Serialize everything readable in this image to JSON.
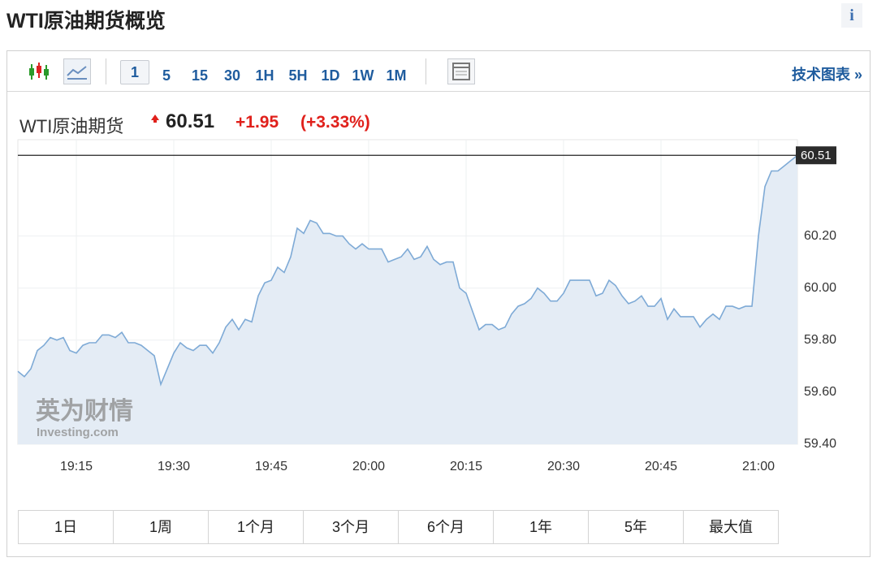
{
  "header": {
    "title": "WTI原油期货概览",
    "info": "i"
  },
  "toolbar": {
    "intervals": [
      "1",
      "5",
      "15",
      "30",
      "1H",
      "5H",
      "1D",
      "1W",
      "1M"
    ],
    "link": "技术图表 »"
  },
  "quote": {
    "name": "WTI原油期货",
    "price": "60.51",
    "change": "+1.95",
    "change_percent": "(+3.33%)"
  },
  "chart_data": {
    "type": "area",
    "x": [
      "19:06",
      "19:07",
      "19:08",
      "19:09",
      "19:10",
      "19:11",
      "19:12",
      "19:13",
      "19:14",
      "19:15",
      "19:16",
      "19:17",
      "19:18",
      "19:19",
      "19:20",
      "19:21",
      "19:22",
      "19:23",
      "19:24",
      "19:25",
      "19:26",
      "19:27",
      "19:28",
      "19:29",
      "19:30",
      "19:31",
      "19:32",
      "19:33",
      "19:34",
      "19:35",
      "19:36",
      "19:37",
      "19:38",
      "19:39",
      "19:40",
      "19:41",
      "19:42",
      "19:43",
      "19:44",
      "19:45",
      "19:46",
      "19:47",
      "19:48",
      "19:49",
      "19:50",
      "19:51",
      "19:52",
      "19:53",
      "19:54",
      "19:55",
      "19:56",
      "19:57",
      "19:58",
      "19:59",
      "20:00",
      "20:01",
      "20:02",
      "20:03",
      "20:04",
      "20:05",
      "20:06",
      "20:07",
      "20:08",
      "20:09",
      "20:10",
      "20:11",
      "20:12",
      "20:13",
      "20:14",
      "20:15",
      "20:16",
      "20:17",
      "20:18",
      "20:19",
      "20:20",
      "20:21",
      "20:22",
      "20:23",
      "20:24",
      "20:25",
      "20:26",
      "20:27",
      "20:28",
      "20:29",
      "20:30",
      "20:31",
      "20:32",
      "20:33",
      "20:34",
      "20:35",
      "20:36",
      "20:37",
      "20:38",
      "20:39",
      "20:40",
      "20:41",
      "20:42",
      "20:43",
      "20:44",
      "20:45",
      "20:46",
      "20:47",
      "20:48",
      "20:49",
      "20:50",
      "20:51",
      "20:52",
      "20:53",
      "20:54",
      "20:55",
      "20:56",
      "20:57",
      "20:58",
      "20:59",
      "21:00",
      "21:01",
      "21:02",
      "21:03",
      "21:04",
      "21:05",
      "21:06"
    ],
    "values": [
      59.68,
      59.66,
      59.69,
      59.76,
      59.78,
      59.81,
      59.8,
      59.81,
      59.76,
      59.75,
      59.78,
      59.79,
      59.79,
      59.82,
      59.82,
      59.81,
      59.83,
      59.79,
      59.79,
      59.78,
      59.76,
      59.74,
      59.63,
      59.69,
      59.75,
      59.79,
      59.77,
      59.76,
      59.78,
      59.78,
      59.75,
      59.79,
      59.85,
      59.88,
      59.84,
      59.88,
      59.87,
      59.97,
      60.02,
      60.03,
      60.08,
      60.06,
      60.12,
      60.23,
      60.21,
      60.26,
      60.25,
      60.21,
      60.21,
      60.2,
      60.2,
      60.17,
      60.15,
      60.17,
      60.15,
      60.15,
      60.15,
      60.1,
      60.11,
      60.12,
      60.15,
      60.11,
      60.12,
      60.16,
      60.11,
      60.09,
      60.1,
      60.1,
      60.0,
      59.98,
      59.91,
      59.84,
      59.86,
      59.86,
      59.84,
      59.85,
      59.9,
      59.93,
      59.94,
      59.96,
      60.0,
      59.98,
      59.95,
      59.95,
      59.98,
      60.03,
      60.03,
      60.03,
      60.03,
      59.97,
      59.98,
      60.03,
      60.01,
      59.97,
      59.94,
      59.95,
      59.97,
      59.93,
      59.93,
      59.96,
      59.88,
      59.92,
      59.89,
      59.89,
      59.89,
      59.85,
      59.88,
      59.9,
      59.88,
      59.93,
      59.93,
      59.92,
      59.93,
      59.93,
      60.2,
      60.39,
      60.45,
      60.45,
      60.47,
      60.49,
      60.51
    ],
    "color": "#7eaad6",
    "fill": "#e4ecf5",
    "xlim": [
      "19:06",
      "21:06"
    ],
    "xticks": [
      "19:15",
      "19:30",
      "19:45",
      "20:00",
      "20:15",
      "20:30",
      "20:45",
      "21:00"
    ],
    "ylim": [
      59.4,
      60.57
    ],
    "yticks": [
      {
        "value": 59.4,
        "label": "59.40"
      },
      {
        "value": 59.6,
        "label": "59.60"
      },
      {
        "value": 59.8,
        "label": "59.80"
      },
      {
        "value": 60,
        "label": "60.00"
      },
      {
        "value": 60.2,
        "label": "60.20"
      }
    ],
    "grid": true,
    "watermark": [
      "英为财情",
      "Investing.com"
    ]
  },
  "ranges": [
    "1日",
    "1周",
    "1个月",
    "3个月",
    "6个月",
    "1年",
    "5年",
    "最大值"
  ]
}
